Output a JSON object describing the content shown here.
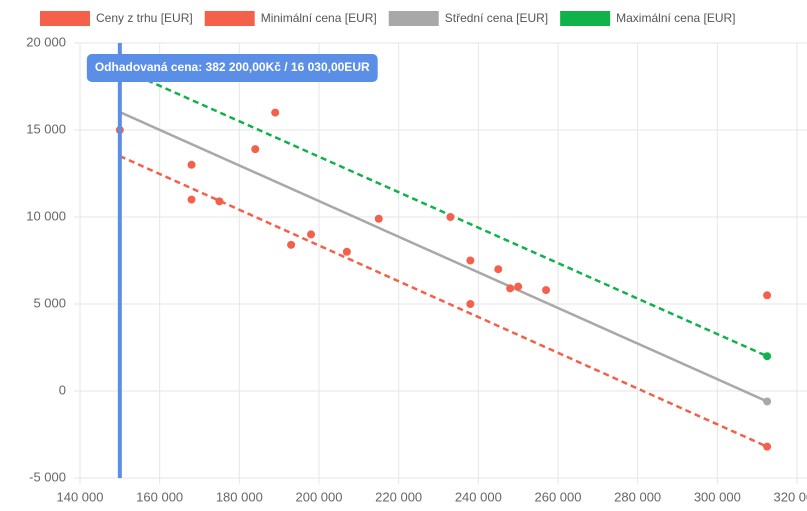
{
  "chart_data": {
    "type": "scatter",
    "xlim": [
      140000,
      320000
    ],
    "xticks": [
      {
        "value": 140000,
        "label": "140 000"
      },
      {
        "value": 160000,
        "label": "160 000"
      },
      {
        "value": 180000,
        "label": "180 000"
      },
      {
        "value": 200000,
        "label": "200 000"
      },
      {
        "value": 220000,
        "label": "220 000"
      },
      {
        "value": 240000,
        "label": "240 000"
      },
      {
        "value": 260000,
        "label": "260 000"
      },
      {
        "value": 280000,
        "label": "280 000"
      },
      {
        "value": 300000,
        "label": "300 000"
      },
      {
        "value": 320000,
        "label": "320 000"
      }
    ],
    "ylim": [
      -5000,
      20000
    ],
    "yticks": [
      {
        "value": -5000,
        "label": "-5 000"
      },
      0,
      {
        "value": 5000,
        "label": "5 000"
      },
      {
        "value": 10000,
        "label": "10 000"
      },
      {
        "value": 15000,
        "label": "15 000"
      },
      {
        "value": 20000,
        "label": "20 000"
      }
    ],
    "grid": true,
    "legend": "top",
    "series": [
      {
        "name": "Ceny z trhu [EUR]",
        "color": "#f5604a",
        "mode": "markers",
        "x": [
          150000,
          168000,
          168000,
          175000,
          184000,
          189000,
          193000,
          198000,
          207000,
          215000,
          233000,
          238000,
          238000,
          245000,
          248000,
          250000,
          257000,
          312500
        ],
        "values": [
          15000,
          13000,
          11000,
          10900,
          13900,
          16000,
          8400,
          9000,
          8000,
          9900,
          10000,
          7500,
          5000,
          7000,
          5900,
          6000,
          5800,
          5500
        ]
      },
      {
        "name": "Minimální cena [EUR]",
        "color": "#f5604a",
        "mode": "line",
        "dashed": true,
        "x": [
          150000,
          312500
        ],
        "values": [
          13500,
          -3200
        ]
      },
      {
        "name": "Střední cena [EUR]",
        "color": "#a8a8a8",
        "mode": "line",
        "dashed": false,
        "x": [
          150000,
          312500
        ],
        "values": [
          16030,
          -600
        ]
      },
      {
        "name": "Maximální cena [EUR]",
        "color": "#10b24a",
        "mode": "line",
        "dashed": true,
        "x": [
          150000,
          312500
        ],
        "values": [
          18560,
          2000
        ]
      }
    ],
    "annotation": {
      "x": 150000,
      "color": "#5b8ee6",
      "text": "Odhadovaná cena: 382 200,00Kč / 16 030,00EUR"
    }
  }
}
